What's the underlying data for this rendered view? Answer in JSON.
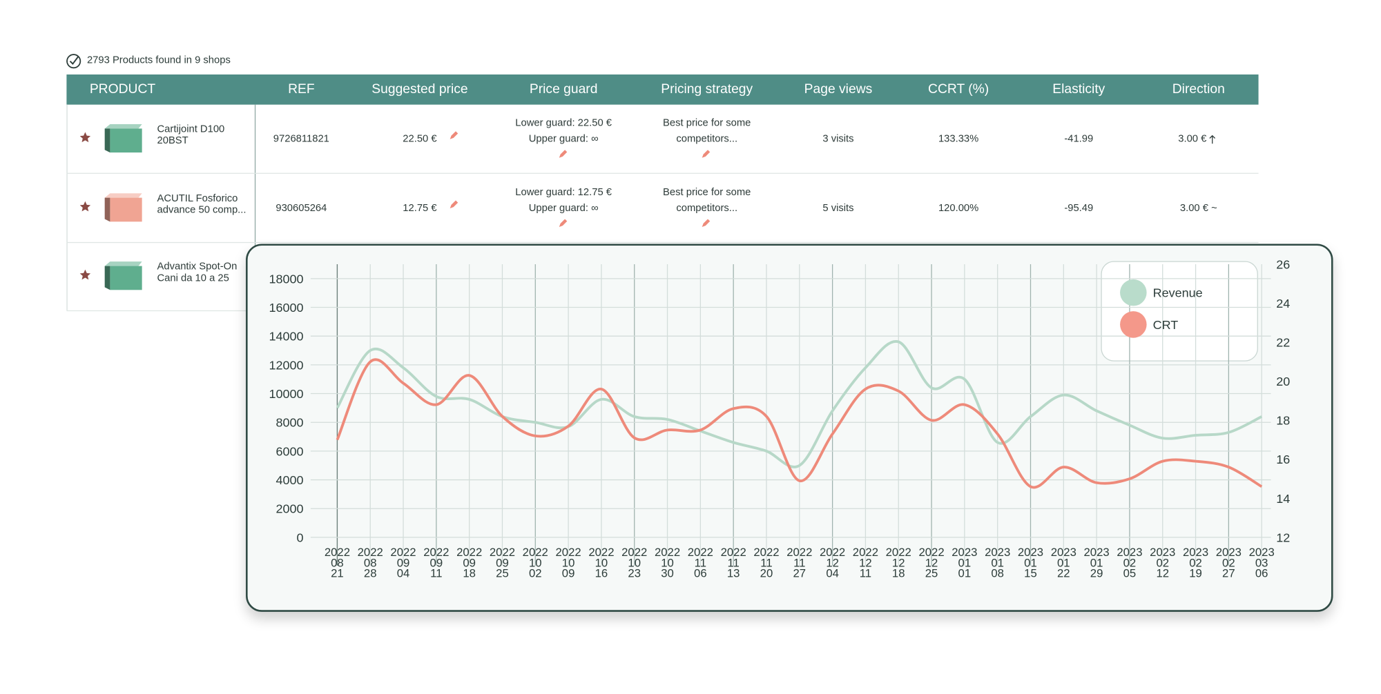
{
  "header": {
    "summary": "2793 Products found in 9 shops"
  },
  "table": {
    "columns": [
      "PRODUCT",
      "REF",
      "Suggested price",
      "Price guard",
      "Pricing strategy",
      "Page views",
      "CCRT (%)",
      "Elasticity",
      "Direction"
    ],
    "rows": [
      {
        "product": "Cartijoint D100 20BST",
        "color": "#5fae8e",
        "ref": "9726811821",
        "suggested_price": "22.50 €",
        "lower_guard": "Lower guard: 22.50 €",
        "upper_guard": "Upper guard: ∞",
        "strategy": "Best price for some competitors...",
        "page_views": "3 visits",
        "ccrt": "133.33%",
        "elasticity": "-41.99",
        "direction": "3.00 €"
      },
      {
        "product": "ACUTIL Fosforico advance 50 comp...",
        "color": "#f0a493",
        "ref": "930605264",
        "suggested_price": "12.75 €",
        "lower_guard": "Lower guard: 12.75 €",
        "upper_guard": "Upper guard: ∞",
        "strategy": "Best price for some competitors...",
        "page_views": "5 visits",
        "ccrt": "120.00%",
        "elasticity": "-95.49",
        "direction": "3.00 € ~"
      },
      {
        "product": "Advantix Spot-On Cani da 10 a 25",
        "color": "#5fae8e"
      }
    ]
  },
  "chart_data": {
    "type": "line",
    "categories": [
      "2022 08 21",
      "2022 08 28",
      "2022 09 04",
      "2022 09 11",
      "2022 09 18",
      "2022 09 25",
      "2022 10 02",
      "2022 10 09",
      "2022 10 16",
      "2022 10 23",
      "2022 10 30",
      "2022 11 06",
      "2022 11 13",
      "2022 11 20",
      "2022 11 27",
      "2022 12 04",
      "2022 12 11",
      "2022 12 18",
      "2022 12 25",
      "2023 01 01",
      "2023 01 08",
      "2023 01 15",
      "2023 01 22",
      "2023 01 29",
      "2023 02 05",
      "2023 02 12",
      "2023 02 19",
      "2023 02 27",
      "2023 03 06"
    ],
    "series": [
      {
        "name": "Revenue",
        "color": "#b7d8c8",
        "legend_color": "#b9dccb",
        "values": [
          9000,
          13000,
          11800,
          9800,
          9600,
          8400,
          8000,
          7700,
          9600,
          8400,
          8200,
          7400,
          6600,
          6000,
          5000,
          8800,
          11800,
          13600,
          10400,
          11000,
          6600,
          8400,
          9900,
          8800,
          7800,
          6900,
          7100,
          7300,
          8400
        ]
      },
      {
        "name": "CRT",
        "color": "#ee8a7a",
        "legend_color": "#f4988a",
        "axis": "y2",
        "values": [
          17.0,
          21.0,
          19.9,
          18.8,
          20.3,
          18.2,
          17.2,
          17.7,
          19.6,
          17.1,
          17.5,
          17.5,
          18.6,
          18.2,
          14.9,
          17.3,
          19.6,
          19.5,
          18.0,
          18.8,
          17.3,
          14.6,
          15.6,
          14.8,
          15.0,
          15.9,
          15.9,
          15.6,
          14.6
        ]
      }
    ],
    "ylim": [
      0,
      19000
    ],
    "yticks": [
      0,
      2000,
      4000,
      6000,
      8000,
      10000,
      12000,
      14000,
      16000,
      18000
    ],
    "y2lim": [
      12,
      26
    ],
    "y2ticks": [
      12,
      14,
      16,
      18,
      20,
      22,
      24,
      26
    ],
    "grid": true,
    "legend": "upper right"
  }
}
